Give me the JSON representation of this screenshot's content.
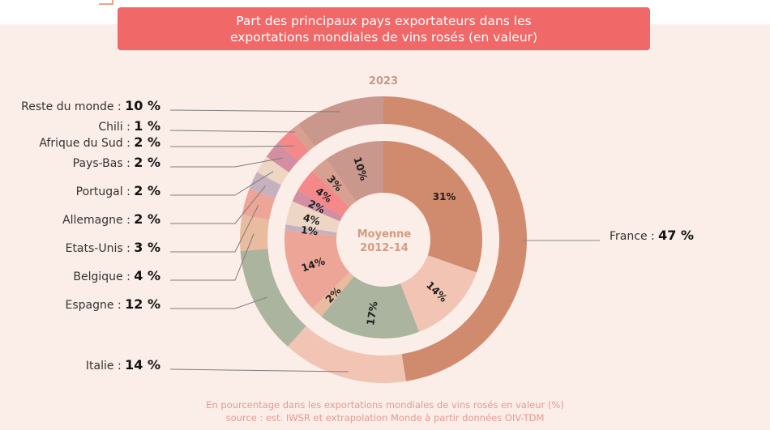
{
  "title": {
    "line1": "Part des principaux pays exportateurs dans les",
    "line2": "exportations mondiales de vins rosés (en valeur)"
  },
  "chart_data": {
    "type": "pie",
    "subtype": "nested-donut",
    "title": "Part des principaux pays exportateurs dans les exportations mondiales de vins rosés (en valeur)",
    "unit": "%",
    "outer_label": "2023",
    "inner_label": "Moyenne 2012-14",
    "categories": [
      "France",
      "Italie",
      "Espagne",
      "Belgique",
      "Etats-Unis",
      "Allemagne",
      "Portugal",
      "Pays-Bas",
      "Afrique du Sud",
      "Chili",
      "Reste du monde"
    ],
    "colors": [
      "#d08a6d",
      "#f2c4b4",
      "#aab49f",
      "#e9bb9f",
      "#eca597",
      "#c6b1bf",
      "#edd6c4",
      "#d38fa1",
      "#f58889",
      "#d8a091",
      "#c9978b"
    ],
    "series": [
      {
        "name": "2023",
        "ring": "outer",
        "values": [
          47,
          14,
          12,
          4,
          3,
          2,
          2,
          2,
          2,
          1,
          10
        ]
      },
      {
        "name": "Moyenne 2012-14",
        "ring": "inner",
        "values": [
          31,
          14,
          17,
          2,
          14,
          1,
          4,
          2,
          4,
          3,
          10
        ]
      }
    ],
    "outer_labels": [
      {
        "name": "France",
        "value": "47 %"
      },
      {
        "name": "Italie",
        "value": "14 %"
      },
      {
        "name": "Espagne",
        "value": "12 %"
      },
      {
        "name": "Belgique",
        "value": "4 %"
      },
      {
        "name": "Etats-Unis",
        "value": "3 %"
      },
      {
        "name": "Allemagne",
        "value": "2 %"
      },
      {
        "name": "Portugal",
        "value": "2 %"
      },
      {
        "name": "Pays-Bas",
        "value": "2 %"
      },
      {
        "name": "Afrique du Sud",
        "value": "2 %"
      },
      {
        "name": "Chili",
        "value": "1 %"
      },
      {
        "name": "Reste du monde",
        "value": "10 %"
      }
    ],
    "inner_labels": [
      "31%",
      "14%",
      "17%",
      "2%",
      "14%",
      "1%",
      "4%",
      "2%",
      "4%",
      "3%",
      "10%"
    ],
    "legend": "none"
  },
  "footer": {
    "line1": "En pourcentage dans les exportations mondiales de vins rosés en valeur (%)",
    "line2": "source : est. IWSR et extrapolation Monde à partir données OIV-TDM"
  },
  "separator": " : "
}
